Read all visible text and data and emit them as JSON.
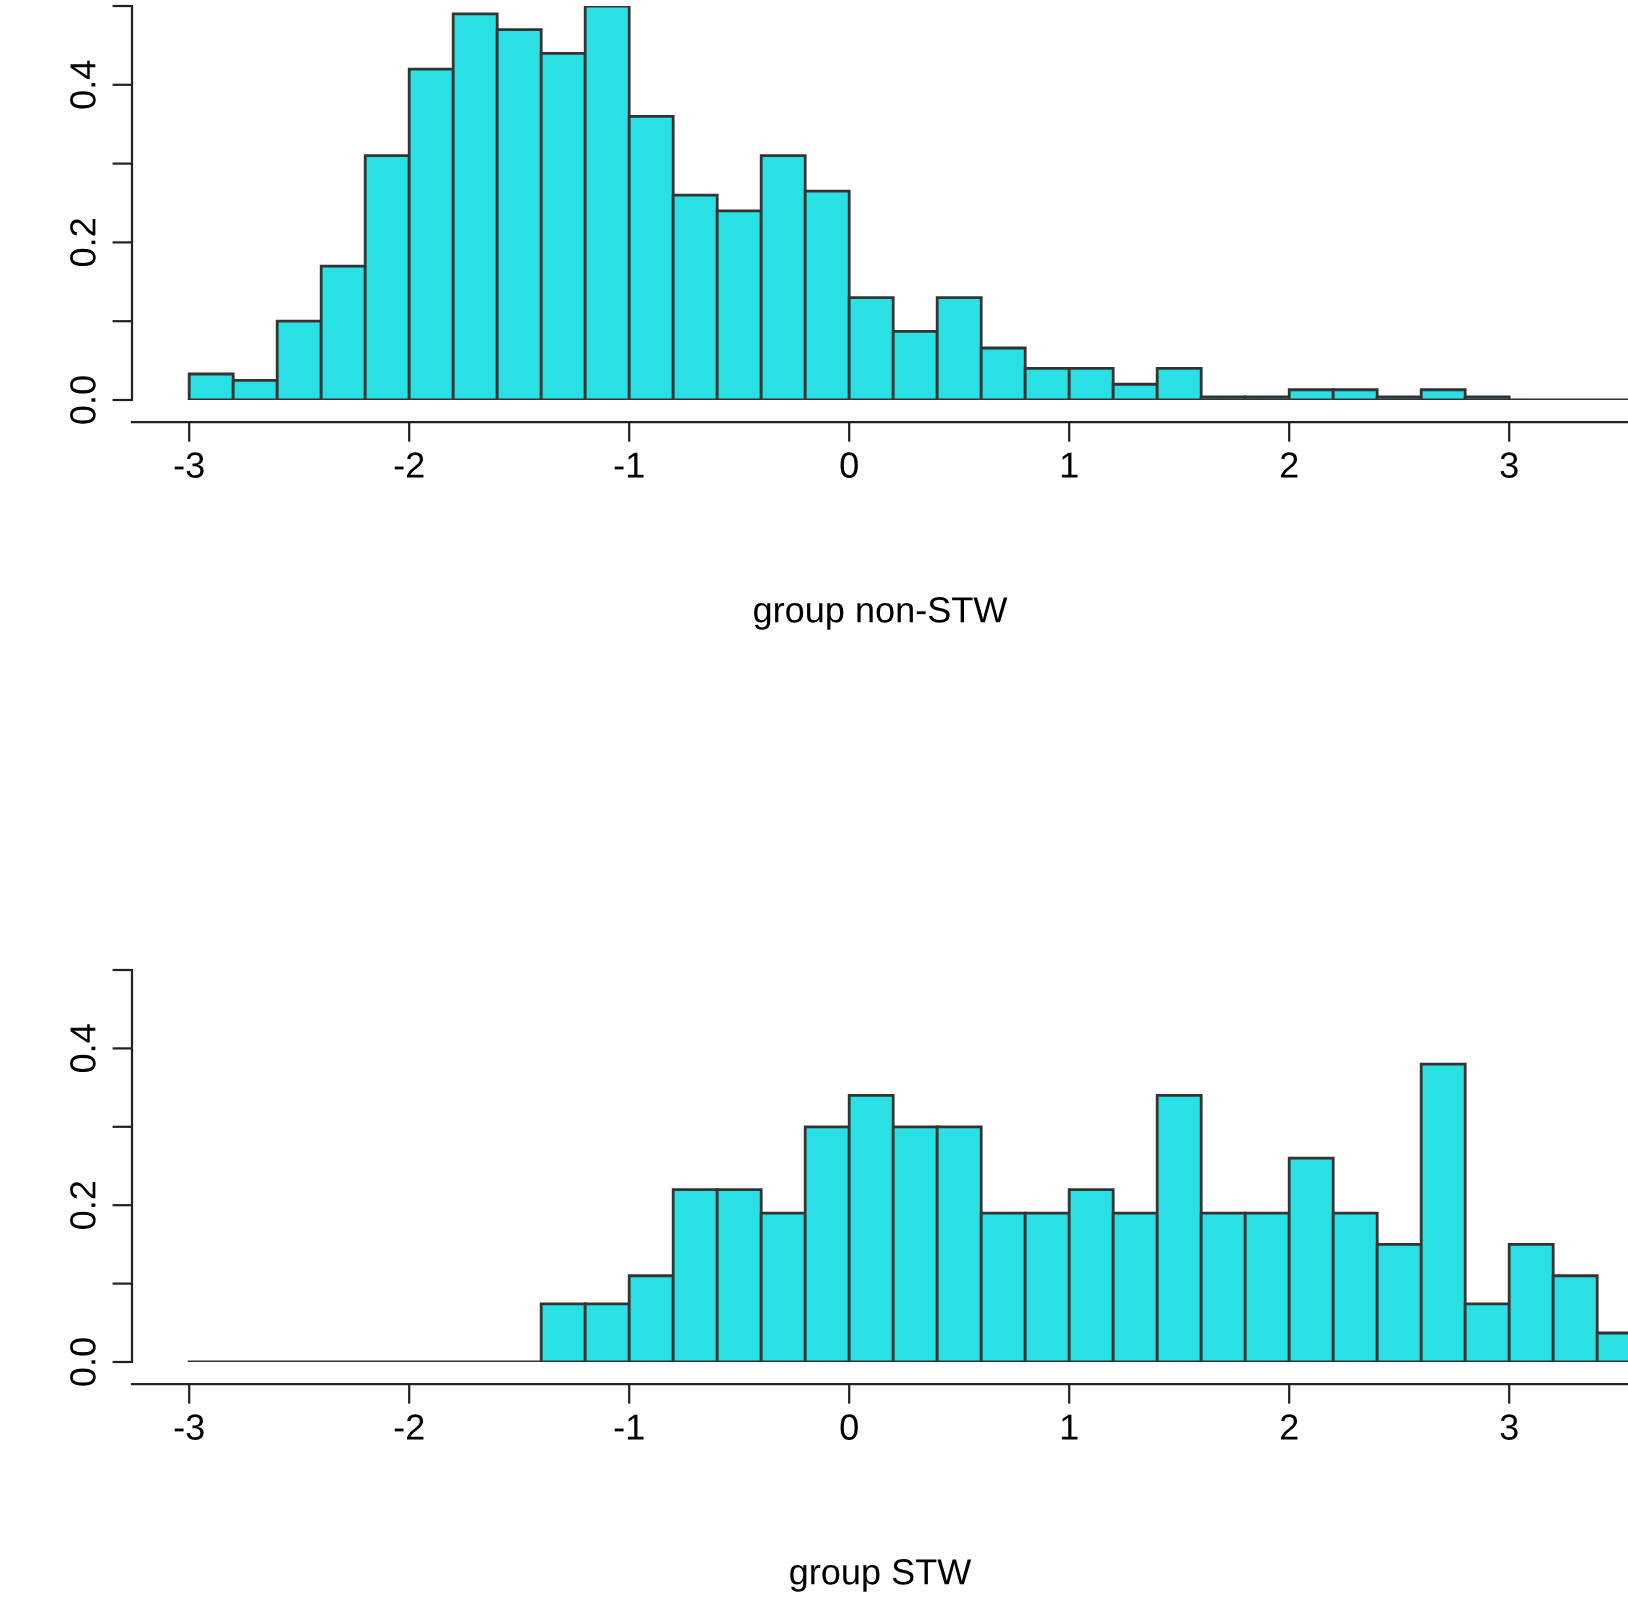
{
  "chart_data": [
    {
      "type": "histogram",
      "xlabel": "group non-STW",
      "color": "#29e1e4",
      "bins": [
        -3.0,
        -2.8,
        -2.6,
        -2.4,
        -2.2,
        -2.0,
        -1.8,
        -1.6,
        -1.4,
        -1.2,
        -1.0,
        -0.8,
        -0.6,
        -0.4,
        -0.2,
        0.0,
        0.2,
        0.4,
        0.6,
        0.8,
        1.0,
        1.2,
        1.4,
        1.6,
        1.8,
        2.0,
        2.2,
        2.4,
        2.6,
        2.8,
        3.0,
        3.2,
        3.4,
        3.6
      ],
      "values": [
        0.033,
        0.025,
        0.1,
        0.17,
        0.31,
        0.42,
        0.49,
        0.47,
        0.44,
        0.5,
        0.36,
        0.26,
        0.24,
        0.31,
        0.265,
        0.13,
        0.087,
        0.13,
        0.066,
        0.04,
        0.04,
        0.02,
        0.04,
        0.004,
        0.004,
        0.013,
        0.013,
        0.004,
        0.013,
        0.004,
        0,
        0,
        0
      ],
      "xlim": [
        -3.26,
        3.54
      ],
      "ylim": [
        0,
        0.5
      ],
      "xticks": [
        -3,
        -2,
        -1,
        0,
        1,
        2,
        3
      ],
      "yticks": [
        {
          "value": 0,
          "label": "0.0"
        },
        {
          "value": 0.1,
          "label": null
        },
        {
          "value": 0.2,
          "label": "0.2"
        },
        {
          "value": 0.3,
          "label": null
        },
        {
          "value": 0.4,
          "label": "0.4"
        },
        {
          "value": 0.5,
          "label": null
        }
      ]
    },
    {
      "type": "histogram",
      "xlabel": "group STW",
      "color": "#29e1e4",
      "bins": [
        -3.0,
        -2.8,
        -2.6,
        -2.4,
        -2.2,
        -2.0,
        -1.8,
        -1.6,
        -1.4,
        -1.2,
        -1.0,
        -0.8,
        -0.6,
        -0.4,
        -0.2,
        0.0,
        0.2,
        0.4,
        0.6,
        0.8,
        1.0,
        1.2,
        1.4,
        1.6,
        1.8,
        2.0,
        2.2,
        2.4,
        2.6,
        2.8,
        3.0,
        3.2,
        3.4,
        3.6
      ],
      "values": [
        0,
        0,
        0,
        0,
        0,
        0,
        0,
        0,
        0.074,
        0.074,
        0.11,
        0.22,
        0.22,
        0.19,
        0.3,
        0.34,
        0.3,
        0.3,
        0.19,
        0.19,
        0.22,
        0.19,
        0.34,
        0.19,
        0.19,
        0.26,
        0.19,
        0.15,
        0.38,
        0.074,
        0.15,
        0.11,
        0.037
      ],
      "xlim": [
        -3.26,
        3.54
      ],
      "ylim": [
        0,
        0.5
      ],
      "xticks": [
        -3,
        -2,
        -1,
        0,
        1,
        2,
        3
      ],
      "yticks": [
        {
          "value": 0,
          "label": "0.0"
        },
        {
          "value": 0.1,
          "label": null
        },
        {
          "value": 0.2,
          "label": "0.2"
        },
        {
          "value": 0.3,
          "label": null
        },
        {
          "value": 0.4,
          "label": "0.4"
        },
        {
          "value": 0.5,
          "label": null
        }
      ]
    }
  ]
}
